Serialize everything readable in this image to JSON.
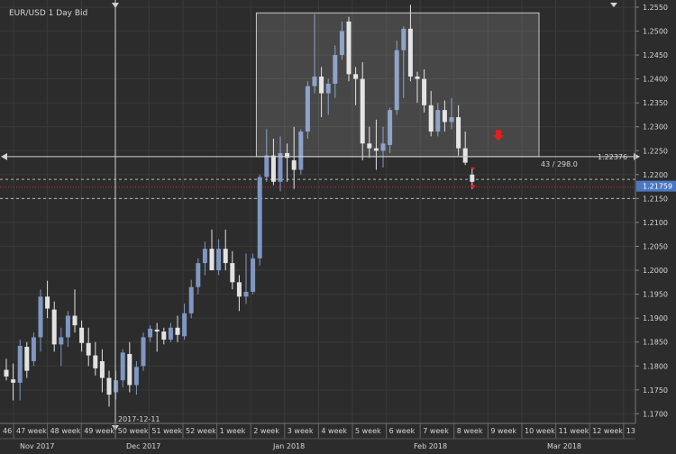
{
  "header": {
    "title": "EUR/USD  1 Day Bid"
  },
  "colors": {
    "background": "#2c2c2c",
    "grid": "#3a3a3a",
    "up": "#7f97c2",
    "down": "#e2e2e2",
    "text": "#d6d6d6",
    "price_badge": "#4a78c0",
    "red_marker": "#e12020",
    "crosshair": "#d0d0d0"
  },
  "crosshair": {
    "date_label": "2017-12-11",
    "price_label": "1.22376",
    "measure_label": "43 / 298.0"
  },
  "current_price": "1.21759",
  "chart_data": {
    "type": "candlestick",
    "title": "EUR/USD  1 Day Bid",
    "ylim": [
      1.168,
      1.2565
    ],
    "grid": true,
    "y_ticks": [
      "1.2550",
      "1.2500",
      "1.2450",
      "1.2400",
      "1.2350",
      "1.2300",
      "1.2250",
      "1.2200",
      "1.2150",
      "1.2100",
      "1.2050",
      "1.2000",
      "1.1950",
      "1.1900",
      "1.1850",
      "1.1800",
      "1.1750",
      "1.1700"
    ],
    "week_labels": [
      "46",
      "47 week",
      "48 week",
      "49 week",
      "50 week",
      "51 week",
      "52 week",
      "1 week",
      "2 week",
      "3 week",
      "4 week",
      "5 week",
      "6 week",
      "7 week",
      "8 week",
      "9 week",
      "10 week",
      "11 week",
      "12 week",
      "13"
    ],
    "month_labels": [
      "Nov 2017",
      "Dec 2017",
      "Jan 2018",
      "Feb 2018",
      "Mar 2018"
    ],
    "levels": {
      "upper_dashed": 1.219,
      "red_dotted": 1.2174,
      "lower_dashed": 1.215,
      "crosshair_price": 1.22376
    },
    "candles": [
      {
        "o": 1.1792,
        "h": 1.1815,
        "l": 1.177,
        "c": 1.1778
      },
      {
        "o": 1.1772,
        "h": 1.1805,
        "l": 1.1728,
        "c": 1.1765
      },
      {
        "o": 1.1765,
        "h": 1.1855,
        "l": 1.1728,
        "c": 1.1842
      },
      {
        "o": 1.184,
        "h": 1.185,
        "l": 1.1775,
        "c": 1.179
      },
      {
        "o": 1.181,
        "h": 1.187,
        "l": 1.18,
        "c": 1.186
      },
      {
        "o": 1.186,
        "h": 1.196,
        "l": 1.183,
        "c": 1.1945
      },
      {
        "o": 1.1945,
        "h": 1.1978,
        "l": 1.19,
        "c": 1.192
      },
      {
        "o": 1.1918,
        "h": 1.1935,
        "l": 1.183,
        "c": 1.1845
      },
      {
        "o": 1.1845,
        "h": 1.188,
        "l": 1.18,
        "c": 1.186
      },
      {
        "o": 1.186,
        "h": 1.1915,
        "l": 1.184,
        "c": 1.1905
      },
      {
        "o": 1.1905,
        "h": 1.196,
        "l": 1.187,
        "c": 1.1885
      },
      {
        "o": 1.188,
        "h": 1.1895,
        "l": 1.183,
        "c": 1.1848
      },
      {
        "o": 1.1848,
        "h": 1.188,
        "l": 1.18,
        "c": 1.1822
      },
      {
        "o": 1.1822,
        "h": 1.185,
        "l": 1.178,
        "c": 1.1795
      },
      {
        "o": 1.181,
        "h": 1.1835,
        "l": 1.1745,
        "c": 1.1775
      },
      {
        "o": 1.1775,
        "h": 1.179,
        "l": 1.1715,
        "c": 1.174
      },
      {
        "o": 1.1745,
        "h": 1.179,
        "l": 1.173,
        "c": 1.177
      },
      {
        "o": 1.177,
        "h": 1.1835,
        "l": 1.1755,
        "c": 1.1828
      },
      {
        "o": 1.1825,
        "h": 1.185,
        "l": 1.1745,
        "c": 1.176
      },
      {
        "o": 1.176,
        "h": 1.181,
        "l": 1.174,
        "c": 1.1798
      },
      {
        "o": 1.18,
        "h": 1.187,
        "l": 1.179,
        "c": 1.186
      },
      {
        "o": 1.186,
        "h": 1.1885,
        "l": 1.185,
        "c": 1.1878
      },
      {
        "o": 1.1876,
        "h": 1.189,
        "l": 1.183,
        "c": 1.1872
      },
      {
        "o": 1.1872,
        "h": 1.188,
        "l": 1.1845,
        "c": 1.1855
      },
      {
        "o": 1.1855,
        "h": 1.189,
        "l": 1.185,
        "c": 1.188
      },
      {
        "o": 1.188,
        "h": 1.1905,
        "l": 1.185,
        "c": 1.1865
      },
      {
        "o": 1.1862,
        "h": 1.193,
        "l": 1.1855,
        "c": 1.191
      },
      {
        "o": 1.191,
        "h": 1.198,
        "l": 1.19,
        "c": 1.1965
      },
      {
        "o": 1.1965,
        "h": 1.2025,
        "l": 1.195,
        "c": 1.2015
      },
      {
        "o": 1.2015,
        "h": 1.206,
        "l": 1.199,
        "c": 1.2045
      },
      {
        "o": 1.2045,
        "h": 1.2085,
        "l": 1.2,
        "c": 1.2
      },
      {
        "o": 1.2,
        "h": 1.2065,
        "l": 1.199,
        "c": 1.2045
      },
      {
        "o": 1.2045,
        "h": 1.2085,
        "l": 1.2,
        "c": 1.2015
      },
      {
        "o": 1.2015,
        "h": 1.204,
        "l": 1.196,
        "c": 1.1975
      },
      {
        "o": 1.1975,
        "h": 1.199,
        "l": 1.1915,
        "c": 1.1945
      },
      {
        "o": 1.1945,
        "h": 1.2035,
        "l": 1.193,
        "c": 1.1955
      },
      {
        "o": 1.1955,
        "h": 1.2035,
        "l": 1.195,
        "c": 1.2025
      },
      {
        "o": 1.2025,
        "h": 1.22,
        "l": 1.201,
        "c": 1.2195
      },
      {
        "o": 1.2195,
        "h": 1.2295,
        "l": 1.2185,
        "c": 1.224
      },
      {
        "o": 1.224,
        "h": 1.2275,
        "l": 1.2178,
        "c": 1.2185
      },
      {
        "o": 1.2185,
        "h": 1.228,
        "l": 1.2165,
        "c": 1.2245
      },
      {
        "o": 1.2245,
        "h": 1.2265,
        "l": 1.2185,
        "c": 1.2235
      },
      {
        "o": 1.223,
        "h": 1.23,
        "l": 1.217,
        "c": 1.221
      },
      {
        "o": 1.221,
        "h": 1.2295,
        "l": 1.22,
        "c": 1.229
      },
      {
        "o": 1.229,
        "h": 1.2395,
        "l": 1.2275,
        "c": 1.2385
      },
      {
        "o": 1.2385,
        "h": 1.2535,
        "l": 1.237,
        "c": 1.2405
      },
      {
        "o": 1.2405,
        "h": 1.2425,
        "l": 1.232,
        "c": 1.237
      },
      {
        "o": 1.237,
        "h": 1.24,
        "l": 1.2325,
        "c": 1.239
      },
      {
        "o": 1.239,
        "h": 1.247,
        "l": 1.236,
        "c": 1.245
      },
      {
        "o": 1.245,
        "h": 1.252,
        "l": 1.244,
        "c": 1.25
      },
      {
        "o": 1.252,
        "h": 1.253,
        "l": 1.2395,
        "c": 1.241
      },
      {
        "o": 1.241,
        "h": 1.2425,
        "l": 1.2345,
        "c": 1.24
      },
      {
        "o": 1.24,
        "h": 1.2435,
        "l": 1.223,
        "c": 1.2265
      },
      {
        "o": 1.2265,
        "h": 1.23,
        "l": 1.2235,
        "c": 1.2255
      },
      {
        "o": 1.2255,
        "h": 1.2315,
        "l": 1.221,
        "c": 1.225
      },
      {
        "o": 1.225,
        "h": 1.23,
        "l": 1.2215,
        "c": 1.2265
      },
      {
        "o": 1.2262,
        "h": 1.234,
        "l": 1.2245,
        "c": 1.2335
      },
      {
        "o": 1.2335,
        "h": 1.248,
        "l": 1.2325,
        "c": 1.246
      },
      {
        "o": 1.246,
        "h": 1.251,
        "l": 1.236,
        "c": 1.2505
      },
      {
        "o": 1.2505,
        "h": 1.2555,
        "l": 1.2395,
        "c": 1.2405
      },
      {
        "o": 1.2405,
        "h": 1.2415,
        "l": 1.235,
        "c": 1.24
      },
      {
        "o": 1.24,
        "h": 1.242,
        "l": 1.233,
        "c": 1.2345
      },
      {
        "o": 1.2345,
        "h": 1.2375,
        "l": 1.228,
        "c": 1.229
      },
      {
        "o": 1.229,
        "h": 1.235,
        "l": 1.228,
        "c": 1.2335
      },
      {
        "o": 1.2335,
        "h": 1.2355,
        "l": 1.229,
        "c": 1.231
      },
      {
        "o": 1.231,
        "h": 1.236,
        "l": 1.2295,
        "c": 1.232
      },
      {
        "o": 1.232,
        "h": 1.2345,
        "l": 1.224,
        "c": 1.2255
      },
      {
        "o": 1.2255,
        "h": 1.229,
        "l": 1.222,
        "c": 1.2225
      },
      {
        "o": 1.22,
        "h": 1.2215,
        "l": 1.217,
        "c": 1.2185
      }
    ]
  }
}
